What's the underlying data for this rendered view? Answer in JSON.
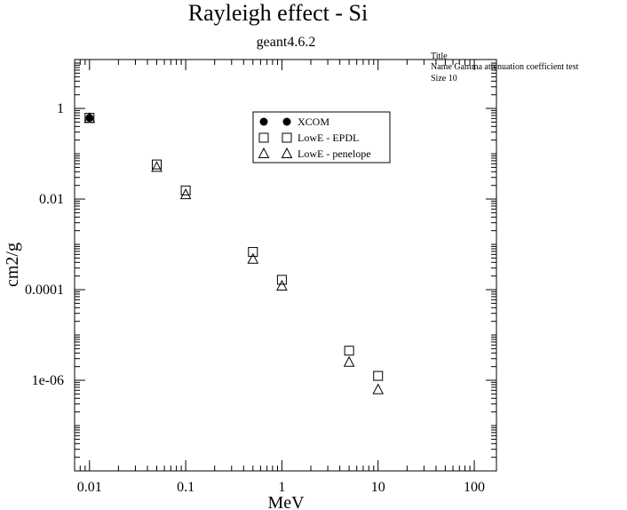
{
  "chart_data": {
    "type": "scatter",
    "title": "Rayleigh effect - Si",
    "subtitle": "geant4.6.2",
    "xlabel": "MeV",
    "ylabel": "cm2/g",
    "x_scale": "log",
    "y_scale": "log",
    "xlim": [
      0.007,
      170
    ],
    "ylim": [
      1e-08,
      12
    ],
    "x_ticks": [
      {
        "value": 0.01,
        "label": "0.01"
      },
      {
        "value": 0.1,
        "label": "0.1"
      },
      {
        "value": 1,
        "label": "1"
      },
      {
        "value": 10,
        "label": "10"
      },
      {
        "value": 100,
        "label": "100"
      }
    ],
    "y_ticks": [
      {
        "value": 1e-06,
        "label": "1e-06"
      },
      {
        "value": 0.0001,
        "label": "0.0001"
      },
      {
        "value": 0.01,
        "label": "0.01"
      },
      {
        "value": 1,
        "label": "1"
      }
    ],
    "grid": false,
    "legend_position": "top-center",
    "series": [
      {
        "name": "XCOM",
        "marker": "filled-circle",
        "x": [
          0.01
        ],
        "y": [
          0.62
        ]
      },
      {
        "name": "LowE - EPDL",
        "marker": "open-square",
        "x": [
          0.01,
          0.05,
          0.1,
          0.5,
          1,
          5,
          10
        ],
        "y": [
          0.62,
          0.058,
          0.0155,
          0.00068,
          0.000165,
          4.5e-06,
          1.25e-06
        ]
      },
      {
        "name": "LowE - penelope",
        "marker": "open-triangle",
        "x": [
          0.01,
          0.05,
          0.1,
          0.5,
          1,
          5,
          10
        ],
        "y": [
          0.6,
          0.05,
          0.0125,
          0.00047,
          0.00012,
          2.5e-06,
          6.2e-07
        ]
      }
    ],
    "annotation": {
      "lines": [
        "Title",
        "Name  Gamma attenuation coefficient test",
        "Size  10"
      ]
    }
  }
}
